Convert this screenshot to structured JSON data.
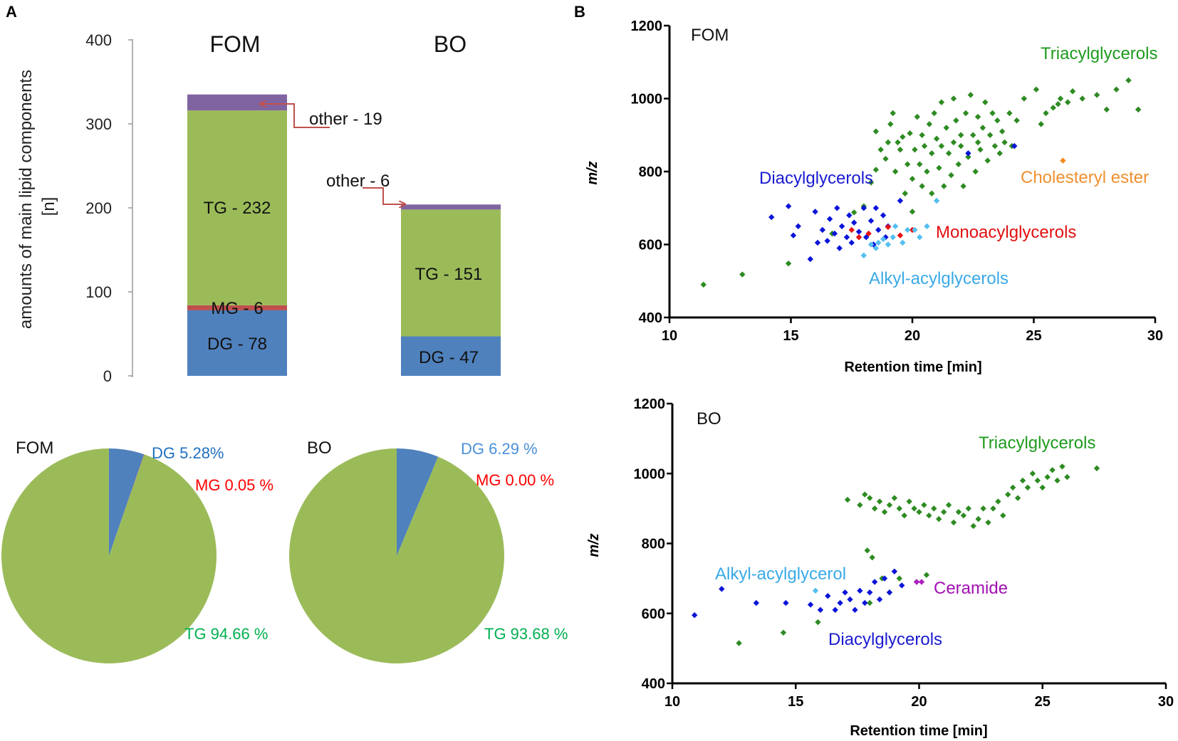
{
  "panels": {
    "a_label": "A",
    "b_label": "B"
  },
  "colors": {
    "DG": "#4f81bd",
    "MG": "#c0504d",
    "TG": "#9bbb59",
    "other": "#8064a2",
    "arrow": "#c0504d",
    "pie_DG_fom": "#1f6fc0",
    "pie_DG_bo": "#4a90d9",
    "pie_MG": "#ff0000",
    "pie_TG": "#00b050",
    "scatter_TG": "#2e8b22",
    "scatter_DG": "#0a14d8",
    "scatter_MG": "#e81010",
    "scatter_AAG": "#55bff0",
    "scatter_CE": "#f08c1e",
    "scatter_CER": "#b020c0",
    "lbl_TG": "#1e9b1e",
    "lbl_DG": "#1a1ad0",
    "lbl_MG": "#e01010",
    "lbl_AAG": "#3aaae8",
    "lbl_CE": "#f09030",
    "lbl_CER": "#a010b0"
  },
  "chart_data": [
    {
      "type": "bar",
      "stacked": true,
      "categories": [
        "FOM",
        "BO"
      ],
      "series": [
        {
          "name": "DG",
          "values": [
            78,
            47
          ]
        },
        {
          "name": "MG",
          "values": [
            6,
            0
          ]
        },
        {
          "name": "TG",
          "values": [
            232,
            151
          ]
        },
        {
          "name": "other",
          "values": [
            19,
            6
          ]
        }
      ],
      "segment_labels": {
        "FOM": [
          "DG - 78",
          "MG - 6",
          "TG - 232"
        ],
        "BO": [
          "DG - 47",
          "TG - 151"
        ]
      },
      "annotations": [
        "other - 19",
        "other - 6"
      ],
      "ylabel_line1": "amounts of main lipid components",
      "ylabel_line2": "[n]",
      "yticks": [
        0,
        100,
        200,
        300,
        400
      ],
      "ylim": [
        0,
        400
      ]
    },
    {
      "type": "pie",
      "title": "FOM",
      "slices": [
        {
          "name": "DG",
          "value": 5.28,
          "label": "DG 5.28%"
        },
        {
          "name": "MG",
          "value": 0.05,
          "label": "MG 0.05 %"
        },
        {
          "name": "TG",
          "value": 94.66,
          "label": "TG 94.66 %"
        }
      ]
    },
    {
      "type": "pie",
      "title": "BO",
      "slices": [
        {
          "name": "DG",
          "value": 6.29,
          "label": "DG 6.29 %"
        },
        {
          "name": "MG",
          "value": 0.0,
          "label": "MG 0.00 %"
        },
        {
          "name": "TG",
          "value": 93.68,
          "label": "TG 93.68 %"
        }
      ]
    },
    {
      "type": "scatter",
      "title": "FOM",
      "xlabel": "Retention time [min]",
      "ylabel": "m/z",
      "xlim": [
        10,
        30
      ],
      "ylim": [
        400,
        1200
      ],
      "xticks": [
        10,
        15,
        20,
        25,
        30
      ],
      "yticks": [
        400,
        600,
        800,
        1000,
        1200
      ],
      "series": [
        {
          "name": "Triacylglycerols",
          "label": "Triacylglycerols",
          "points": [
            [
              11.4,
              490
            ],
            [
              13.0,
              518
            ],
            [
              14.9,
              548
            ],
            [
              16.7,
              630
            ],
            [
              17.6,
              688
            ],
            [
              18.0,
              705
            ],
            [
              18.3,
              770
            ],
            [
              18.5,
              805
            ],
            [
              18.5,
              910
            ],
            [
              18.7,
              860
            ],
            [
              18.9,
              835
            ],
            [
              19.0,
              880
            ],
            [
              19.1,
              930
            ],
            [
              19.2,
              960
            ],
            [
              19.3,
              800
            ],
            [
              19.4,
              880
            ],
            [
              19.5,
              860
            ],
            [
              19.6,
              895
            ],
            [
              19.7,
              740
            ],
            [
              19.8,
              820
            ],
            [
              19.9,
              905
            ],
            [
              20.0,
              690
            ],
            [
              20.0,
              780
            ],
            [
              20.1,
              860
            ],
            [
              20.2,
              950
            ],
            [
              20.3,
              820
            ],
            [
              20.4,
              760
            ],
            [
              20.4,
              900
            ],
            [
              20.5,
              870
            ],
            [
              20.6,
              800
            ],
            [
              20.7,
              930
            ],
            [
              20.8,
              740
            ],
            [
              20.8,
              850
            ],
            [
              20.9,
              960
            ],
            [
              21.0,
              890
            ],
            [
              21.1,
              810
            ],
            [
              21.2,
              870
            ],
            [
              21.2,
              990
            ],
            [
              21.3,
              760
            ],
            [
              21.4,
              920
            ],
            [
              21.5,
              850
            ],
            [
              21.6,
              790
            ],
            [
              21.7,
              880
            ],
            [
              21.7,
              1000
            ],
            [
              21.8,
              940
            ],
            [
              21.9,
              820
            ],
            [
              22.0,
              900
            ],
            [
              22.0,
              870
            ],
            [
              22.1,
              760
            ],
            [
              22.2,
              960
            ],
            [
              22.3,
              840
            ],
            [
              22.4,
              1010
            ],
            [
              22.5,
              900
            ],
            [
              22.6,
              800
            ],
            [
              22.7,
              880
            ],
            [
              22.7,
              950
            ],
            [
              22.8,
              860
            ],
            [
              22.9,
              920
            ],
            [
              23.0,
              990
            ],
            [
              23.1,
              830
            ],
            [
              23.2,
              900
            ],
            [
              23.3,
              960
            ],
            [
              23.4,
              870
            ],
            [
              23.5,
              940
            ],
            [
              23.6,
              850
            ],
            [
              23.7,
              910
            ],
            [
              23.8,
              880
            ],
            [
              24.0,
              960
            ],
            [
              24.1,
              870
            ],
            [
              24.3,
              940
            ],
            [
              24.6,
              1000
            ],
            [
              25.1,
              1025
            ],
            [
              25.3,
              930
            ],
            [
              25.5,
              960
            ],
            [
              25.8,
              975
            ],
            [
              26.0,
              985
            ],
            [
              26.1,
              1000
            ],
            [
              26.4,
              990
            ],
            [
              26.6,
              1020
            ],
            [
              27.0,
              1000
            ],
            [
              27.6,
              1010
            ],
            [
              28.0,
              970
            ],
            [
              28.4,
              1025
            ],
            [
              28.9,
              1050
            ],
            [
              29.3,
              970
            ]
          ]
        },
        {
          "name": "Diacylglycerols",
          "label": "Diacylglycerols",
          "points": [
            [
              14.2,
              675
            ],
            [
              14.9,
              705
            ],
            [
              15.1,
              625
            ],
            [
              15.3,
              650
            ],
            [
              15.8,
              560
            ],
            [
              16.0,
              690
            ],
            [
              16.1,
              605
            ],
            [
              16.3,
              640
            ],
            [
              16.5,
              610
            ],
            [
              16.6,
              670
            ],
            [
              16.8,
              630
            ],
            [
              16.9,
              700
            ],
            [
              17.0,
              590
            ],
            [
              17.1,
              650
            ],
            [
              17.3,
              620
            ],
            [
              17.4,
              680
            ],
            [
              17.5,
              605
            ],
            [
              17.6,
              660
            ],
            [
              17.8,
              635
            ],
            [
              18.0,
              700
            ],
            [
              18.1,
              620
            ],
            [
              18.3,
              665
            ],
            [
              18.4,
              600
            ],
            [
              18.5,
              700
            ],
            [
              18.6,
              640
            ],
            [
              18.8,
              680
            ],
            [
              18.9,
              620
            ],
            [
              19.0,
              650
            ],
            [
              19.5,
              720
            ],
            [
              22.3,
              850
            ],
            [
              24.2,
              870
            ]
          ]
        },
        {
          "name": "Monoacylglycerols",
          "label": "Monoacylglycerols",
          "points": [
            [
              17.5,
              640
            ],
            [
              17.8,
              620
            ],
            [
              18.2,
              630
            ],
            [
              19.0,
              648
            ],
            [
              19.5,
              625
            ],
            [
              20.0,
              640
            ]
          ]
        },
        {
          "name": "Alkyl-acylglycerols",
          "label": "Alkyl-acylglycerols",
          "points": [
            [
              18.0,
              570
            ],
            [
              18.3,
              600
            ],
            [
              18.5,
              590
            ],
            [
              18.6,
              605
            ],
            [
              18.8,
              615
            ],
            [
              19.0,
              600
            ],
            [
              19.2,
              620
            ],
            [
              19.3,
              650
            ],
            [
              19.6,
              605
            ],
            [
              19.8,
              640
            ],
            [
              20.1,
              640
            ],
            [
              20.3,
              620
            ],
            [
              20.6,
              650
            ],
            [
              21.0,
              720
            ]
          ]
        },
        {
          "name": "Cholesteryl ester",
          "label": "Cholesteryl ester",
          "points": [
            [
              26.2,
              830
            ]
          ]
        }
      ]
    },
    {
      "type": "scatter",
      "title": "BO",
      "xlabel": "Retention time [min]",
      "ylabel": "m/z",
      "xlim": [
        10,
        30
      ],
      "ylim": [
        400,
        1200
      ],
      "xticks": [
        10,
        15,
        20,
        25,
        30
      ],
      "yticks": [
        400,
        600,
        800,
        1000,
        1200
      ],
      "series": [
        {
          "name": "Triacylglycerols",
          "label": "Triacylglycerols",
          "points": [
            [
              12.7,
              515
            ],
            [
              14.5,
              545
            ],
            [
              15.9,
              575
            ],
            [
              17.1,
              925
            ],
            [
              17.6,
              910
            ],
            [
              17.8,
              940
            ],
            [
              18.0,
              930
            ],
            [
              18.2,
              900
            ],
            [
              18.4,
              920
            ],
            [
              18.6,
              890
            ],
            [
              18.8,
              910
            ],
            [
              19.0,
              930
            ],
            [
              19.2,
              900
            ],
            [
              19.4,
              880
            ],
            [
              19.6,
              920
            ],
            [
              19.8,
              900
            ],
            [
              20.0,
              890
            ],
            [
              20.2,
              910
            ],
            [
              20.4,
              880
            ],
            [
              20.6,
              900
            ],
            [
              20.8,
              870
            ],
            [
              21.0,
              890
            ],
            [
              21.2,
              910
            ],
            [
              21.4,
              860
            ],
            [
              21.6,
              890
            ],
            [
              21.8,
              880
            ],
            [
              22.0,
              900
            ],
            [
              22.2,
              850
            ],
            [
              22.4,
              870
            ],
            [
              22.6,
              900
            ],
            [
              22.8,
              860
            ],
            [
              23.0,
              900
            ],
            [
              23.2,
              920
            ],
            [
              23.4,
              880
            ],
            [
              23.6,
              940
            ],
            [
              23.8,
              960
            ],
            [
              24.0,
              930
            ],
            [
              24.2,
              980
            ],
            [
              24.4,
              960
            ],
            [
              24.6,
              1000
            ],
            [
              24.8,
              980
            ],
            [
              25.0,
              960
            ],
            [
              25.2,
              990
            ],
            [
              25.4,
              1010
            ],
            [
              25.6,
              980
            ],
            [
              25.8,
              1020
            ],
            [
              26.0,
              990
            ],
            [
              27.2,
              1015
            ],
            [
              17.9,
              780
            ],
            [
              18.1,
              760
            ],
            [
              18.5,
              700
            ],
            [
              18.8,
              660
            ],
            [
              19.2,
              700
            ],
            [
              19.9,
              690
            ],
            [
              20.3,
              710
            ],
            [
              18.0,
              630
            ]
          ]
        },
        {
          "name": "Diacylglycerols",
          "label": "Diacylglycerols",
          "points": [
            [
              10.9,
              595
            ],
            [
              12.0,
              670
            ],
            [
              13.4,
              630
            ],
            [
              14.6,
              630
            ],
            [
              15.6,
              625
            ],
            [
              16.0,
              610
            ],
            [
              16.3,
              650
            ],
            [
              16.6,
              610
            ],
            [
              16.8,
              630
            ],
            [
              17.0,
              660
            ],
            [
              17.2,
              640
            ],
            [
              17.4,
              610
            ],
            [
              17.6,
              665
            ],
            [
              17.8,
              630
            ],
            [
              18.0,
              660
            ],
            [
              18.2,
              690
            ],
            [
              18.4,
              640
            ],
            [
              18.6,
              700
            ],
            [
              18.8,
              660
            ],
            [
              19.0,
              720
            ],
            [
              19.3,
              680
            ]
          ]
        },
        {
          "name": "Alkyl-acylglycerol",
          "label": "Alkyl-acylglycerol",
          "points": [
            [
              15.8,
              665
            ]
          ]
        },
        {
          "name": "Ceramide",
          "label": "Ceramide",
          "points": [
            [
              19.9,
              690
            ],
            [
              20.1,
              690
            ]
          ]
        }
      ]
    }
  ]
}
